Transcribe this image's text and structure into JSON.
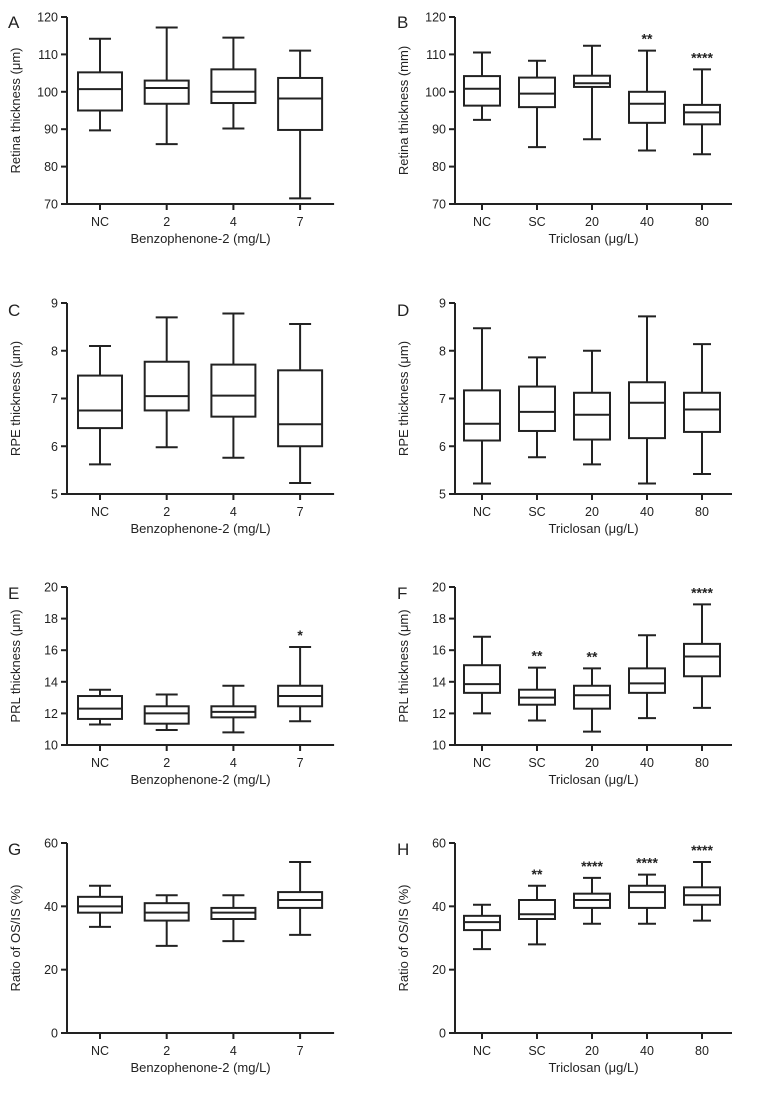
{
  "chart_data": [
    {
      "panel": "A",
      "type": "box",
      "ylabel": "Retina thickness (μm)",
      "xlabel": "Benzophenone-2 (mg/L)",
      "ylim": [
        70,
        120
      ],
      "yticks": [
        70,
        80,
        90,
        100,
        110,
        120
      ],
      "categories": [
        "NC",
        "2",
        "4",
        "7"
      ],
      "boxes": [
        {
          "min": 89.7,
          "q1": 95.0,
          "median": 100.7,
          "q3": 105.2,
          "max": 114.2,
          "sig": ""
        },
        {
          "min": 86.0,
          "q1": 96.8,
          "median": 101.0,
          "q3": 103.0,
          "max": 117.2,
          "sig": ""
        },
        {
          "min": 90.2,
          "q1": 97.0,
          "median": 100.0,
          "q3": 106.0,
          "max": 114.5,
          "sig": ""
        },
        {
          "min": 71.5,
          "q1": 89.8,
          "median": 98.2,
          "q3": 103.7,
          "max": 111.0,
          "sig": ""
        }
      ]
    },
    {
      "panel": "B",
      "type": "box",
      "ylabel": "Retina thickness (mm)",
      "xlabel": "Triclosan (μg/L)",
      "ylim": [
        70,
        120
      ],
      "yticks": [
        70,
        80,
        90,
        100,
        110,
        120
      ],
      "categories": [
        "NC",
        "SC",
        "20",
        "40",
        "80"
      ],
      "boxes": [
        {
          "min": 92.5,
          "q1": 96.3,
          "median": 100.8,
          "q3": 104.2,
          "max": 110.5,
          "sig": ""
        },
        {
          "min": 85.2,
          "q1": 95.9,
          "median": 99.5,
          "q3": 103.8,
          "max": 108.3,
          "sig": ""
        },
        {
          "min": 87.3,
          "q1": 101.3,
          "median": 102.3,
          "q3": 104.3,
          "max": 112.3,
          "sig": ""
        },
        {
          "min": 84.3,
          "q1": 91.7,
          "median": 96.8,
          "q3": 100.0,
          "max": 111.0,
          "sig": "**"
        },
        {
          "min": 83.3,
          "q1": 91.3,
          "median": 94.5,
          "q3": 96.5,
          "max": 106.0,
          "sig": "****"
        }
      ]
    },
    {
      "panel": "C",
      "type": "box",
      "ylabel": "RPE thickness (μm)",
      "xlabel": "Benzophenone-2 (mg/L)",
      "ylim": [
        5,
        9
      ],
      "yticks": [
        5,
        6,
        7,
        8,
        9
      ],
      "categories": [
        "NC",
        "2",
        "4",
        "7"
      ],
      "boxes": [
        {
          "min": 5.62,
          "q1": 6.38,
          "median": 6.75,
          "q3": 7.48,
          "max": 8.1,
          "sig": ""
        },
        {
          "min": 5.98,
          "q1": 6.75,
          "median": 7.05,
          "q3": 7.77,
          "max": 8.7,
          "sig": ""
        },
        {
          "min": 5.76,
          "q1": 6.62,
          "median": 7.06,
          "q3": 7.71,
          "max": 8.78,
          "sig": ""
        },
        {
          "min": 5.23,
          "q1": 6.0,
          "median": 6.46,
          "q3": 7.59,
          "max": 8.56,
          "sig": ""
        }
      ]
    },
    {
      "panel": "D",
      "type": "box",
      "ylabel": "RPE thickness (μm)",
      "xlabel": "Triclosan (μg/L)",
      "ylim": [
        5,
        9
      ],
      "yticks": [
        5,
        6,
        7,
        8,
        9
      ],
      "categories": [
        "NC",
        "SC",
        "20",
        "40",
        "80"
      ],
      "boxes": [
        {
          "min": 5.22,
          "q1": 6.12,
          "median": 6.47,
          "q3": 7.17,
          "max": 8.47,
          "sig": ""
        },
        {
          "min": 5.77,
          "q1": 6.32,
          "median": 6.72,
          "q3": 7.25,
          "max": 7.86,
          "sig": ""
        },
        {
          "min": 5.62,
          "q1": 6.14,
          "median": 6.66,
          "q3": 7.12,
          "max": 8.0,
          "sig": ""
        },
        {
          "min": 5.22,
          "q1": 6.17,
          "median": 6.91,
          "q3": 7.34,
          "max": 8.72,
          "sig": ""
        },
        {
          "min": 5.42,
          "q1": 6.3,
          "median": 6.77,
          "q3": 7.12,
          "max": 8.14,
          "sig": ""
        }
      ]
    },
    {
      "panel": "E",
      "type": "box",
      "ylabel": "PRL thickness (μm)",
      "xlabel": "Benzophenone-2 (mg/L)",
      "ylim": [
        10,
        20
      ],
      "yticks": [
        10,
        12,
        14,
        16,
        18,
        20
      ],
      "categories": [
        "NC",
        "2",
        "4",
        "7"
      ],
      "boxes": [
        {
          "min": 11.3,
          "q1": 11.65,
          "median": 12.3,
          "q3": 13.1,
          "max": 13.5,
          "sig": ""
        },
        {
          "min": 10.95,
          "q1": 11.35,
          "median": 12.0,
          "q3": 12.45,
          "max": 13.2,
          "sig": ""
        },
        {
          "min": 10.8,
          "q1": 11.75,
          "median": 12.1,
          "q3": 12.45,
          "max": 13.75,
          "sig": ""
        },
        {
          "min": 11.5,
          "q1": 12.45,
          "median": 13.1,
          "q3": 13.75,
          "max": 16.2,
          "sig": "*"
        }
      ]
    },
    {
      "panel": "F",
      "type": "box",
      "ylabel": "PRL thickness (μm)",
      "xlabel": "Triclosan (μg/L)",
      "ylim": [
        10,
        20
      ],
      "yticks": [
        10,
        12,
        14,
        16,
        18,
        20
      ],
      "categories": [
        "NC",
        "SC",
        "20",
        "40",
        "80"
      ],
      "boxes": [
        {
          "min": 12.0,
          "q1": 13.3,
          "median": 13.85,
          "q3": 15.05,
          "max": 16.85,
          "sig": ""
        },
        {
          "min": 11.55,
          "q1": 12.55,
          "median": 13.0,
          "q3": 13.5,
          "max": 14.9,
          "sig": "**"
        },
        {
          "min": 10.85,
          "q1": 12.3,
          "median": 13.15,
          "q3": 13.75,
          "max": 14.85,
          "sig": "**"
        },
        {
          "min": 11.7,
          "q1": 13.3,
          "median": 13.9,
          "q3": 14.85,
          "max": 16.95,
          "sig": ""
        },
        {
          "min": 12.35,
          "q1": 14.35,
          "median": 15.6,
          "q3": 16.4,
          "max": 18.9,
          "sig": "****"
        }
      ]
    },
    {
      "panel": "G",
      "type": "box",
      "ylabel": "Ratio of OS/IS (%)",
      "xlabel": "Benzophenone-2 (mg/L)",
      "ylim": [
        0,
        60
      ],
      "yticks": [
        0,
        20,
        40,
        60
      ],
      "categories": [
        "NC",
        "2",
        "4",
        "7"
      ],
      "boxes": [
        {
          "min": 33.5,
          "q1": 38.0,
          "median": 40.0,
          "q3": 43.0,
          "max": 46.5,
          "sig": ""
        },
        {
          "min": 27.5,
          "q1": 35.5,
          "median": 38.0,
          "q3": 41.0,
          "max": 43.5,
          "sig": ""
        },
        {
          "min": 29.0,
          "q1": 36.0,
          "median": 38.0,
          "q3": 39.5,
          "max": 43.5,
          "sig": ""
        },
        {
          "min": 31.0,
          "q1": 39.5,
          "median": 42.0,
          "q3": 44.5,
          "max": 54.0,
          "sig": ""
        }
      ]
    },
    {
      "panel": "H",
      "type": "box",
      "ylabel": "Ratio of OS/IS (%)",
      "xlabel": "Triclosan (μg/L)",
      "ylim": [
        0,
        60
      ],
      "yticks": [
        0,
        20,
        40,
        60
      ],
      "categories": [
        "NC",
        "SC",
        "20",
        "40",
        "80"
      ],
      "boxes": [
        {
          "min": 26.5,
          "q1": 32.5,
          "median": 35.0,
          "q3": 37.0,
          "max": 40.5,
          "sig": ""
        },
        {
          "min": 28.0,
          "q1": 36.0,
          "median": 37.5,
          "q3": 42.0,
          "max": 46.5,
          "sig": "**"
        },
        {
          "min": 34.5,
          "q1": 39.5,
          "median": 42.0,
          "q3": 44.0,
          "max": 49.0,
          "sig": "****"
        },
        {
          "min": 34.5,
          "q1": 39.5,
          "median": 44.5,
          "q3": 46.5,
          "max": 50.0,
          "sig": "****"
        },
        {
          "min": 35.5,
          "q1": 40.5,
          "median": 43.5,
          "q3": 46.0,
          "max": 54.0,
          "sig": "****"
        }
      ]
    }
  ]
}
